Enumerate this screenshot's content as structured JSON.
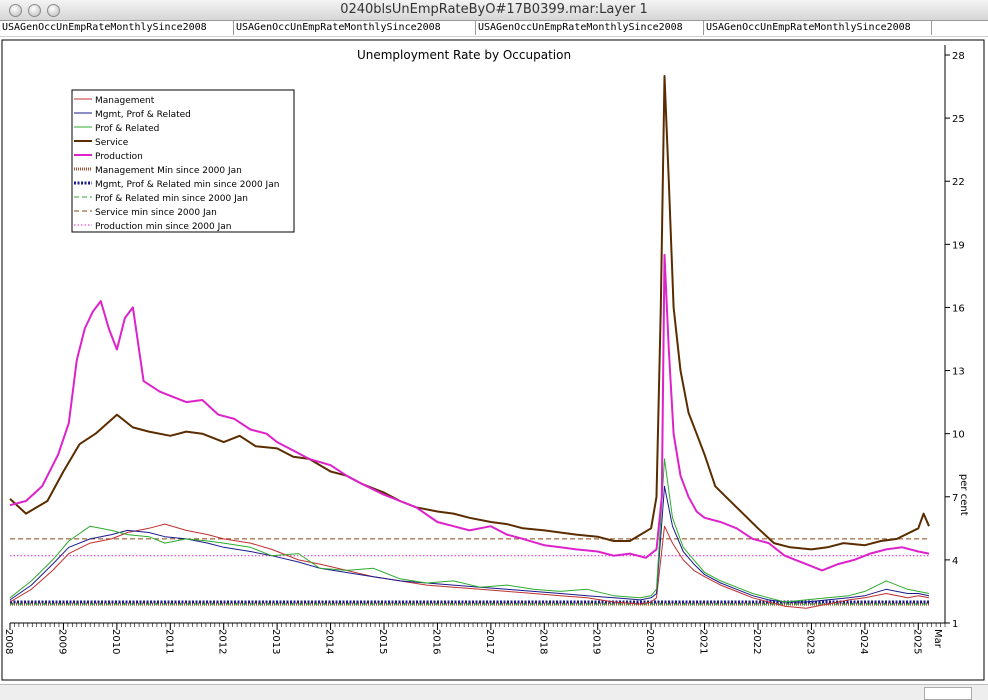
{
  "window": {
    "title": "0240blsUnEmpRateByO#17B0399.mar:Layer 1",
    "tabs": [
      "USAGenOccUnEmpRateMonthlySince2008",
      "USAGenOccUnEmpRateMonthlySince2008",
      "USAGenOccUnEmpRateMonthlySince2008",
      "USAGenOccUnEmpRateMonthlySince2008"
    ]
  },
  "chart_data": {
    "type": "line",
    "title": "Unemployment Rate by Occupation",
    "ylabel": "per cent",
    "ylim": [
      1,
      28
    ],
    "y_ticks": [
      1,
      4,
      7,
      10,
      13,
      16,
      19,
      22,
      25,
      28
    ],
    "xlim": [
      2008.0,
      2025.5
    ],
    "x_ticks": [
      "2008",
      "2009",
      "2010",
      "2011",
      "2012",
      "2013",
      "2014",
      "2015",
      "2016",
      "2017",
      "2018",
      "2019",
      "2020",
      "2021",
      "2022",
      "2023",
      "2024",
      "2025"
    ],
    "x_end_label": "Mar",
    "legend_position": "top-left",
    "series": [
      {
        "name": "Management",
        "color": "#c03030",
        "style": "solid",
        "x": [
          2008.0,
          2008.4,
          2008.8,
          2009.1,
          2009.5,
          2009.9,
          2010.2,
          2010.6,
          2010.9,
          2011.3,
          2011.7,
          2012.0,
          2012.5,
          2012.9,
          2013.4,
          2013.8,
          2014.3,
          2014.8,
          2015.3,
          2015.8,
          2016.3,
          2016.8,
          2017.3,
          2017.8,
          2018.3,
          2018.8,
          2019.3,
          2019.8,
          2020.0,
          2020.1,
          2020.25,
          2020.4,
          2020.6,
          2020.8,
          2021.0,
          2021.3,
          2021.6,
          2021.9,
          2022.2,
          2022.5,
          2022.9,
          2023.3,
          2023.7,
          2024.0,
          2024.4,
          2024.8,
          2025.0,
          2025.2
        ],
        "y": [
          2.0,
          2.6,
          3.5,
          4.3,
          4.8,
          5.0,
          5.3,
          5.5,
          5.7,
          5.4,
          5.2,
          5.0,
          4.8,
          4.5,
          4.0,
          3.8,
          3.5,
          3.2,
          3.0,
          2.8,
          2.7,
          2.6,
          2.5,
          2.4,
          2.3,
          2.2,
          2.0,
          1.9,
          2.0,
          2.2,
          5.6,
          4.8,
          4.0,
          3.5,
          3.2,
          2.8,
          2.5,
          2.2,
          2.0,
          1.8,
          1.7,
          1.9,
          2.1,
          2.2,
          2.4,
          2.2,
          2.3,
          2.2
        ]
      },
      {
        "name": "Mgmt, Prof & Related",
        "color": "#1a1a8c",
        "style": "solid",
        "x": [
          2008.0,
          2008.4,
          2008.8,
          2009.1,
          2009.5,
          2009.9,
          2010.2,
          2010.6,
          2010.9,
          2011.3,
          2011.7,
          2012.0,
          2012.5,
          2012.9,
          2013.4,
          2013.8,
          2014.3,
          2014.8,
          2015.3,
          2015.8,
          2016.3,
          2016.8,
          2017.3,
          2017.8,
          2018.3,
          2018.8,
          2019.3,
          2019.8,
          2020.0,
          2020.1,
          2020.25,
          2020.4,
          2020.6,
          2020.8,
          2021.0,
          2021.3,
          2021.6,
          2021.9,
          2022.2,
          2022.5,
          2022.9,
          2023.3,
          2023.7,
          2024.0,
          2024.4,
          2024.8,
          2025.0,
          2025.2
        ],
        "y": [
          2.1,
          2.8,
          3.8,
          4.6,
          5.0,
          5.2,
          5.4,
          5.3,
          5.1,
          5.0,
          4.8,
          4.6,
          4.4,
          4.2,
          3.9,
          3.6,
          3.4,
          3.2,
          3.0,
          2.9,
          2.8,
          2.7,
          2.6,
          2.5,
          2.4,
          2.3,
          2.2,
          2.1,
          2.2,
          2.4,
          7.5,
          5.6,
          4.4,
          3.8,
          3.3,
          2.9,
          2.6,
          2.3,
          2.1,
          2.0,
          2.0,
          2.1,
          2.2,
          2.3,
          2.6,
          2.4,
          2.4,
          2.3
        ]
      },
      {
        "name": "Prof & Related",
        "color": "#2eab2e",
        "style": "solid",
        "x": [
          2008.0,
          2008.4,
          2008.8,
          2009.1,
          2009.5,
          2009.9,
          2010.2,
          2010.6,
          2010.9,
          2011.3,
          2011.7,
          2012.0,
          2012.5,
          2012.9,
          2013.4,
          2013.8,
          2014.3,
          2014.8,
          2015.3,
          2015.8,
          2016.3,
          2016.8,
          2017.3,
          2017.8,
          2018.3,
          2018.8,
          2019.3,
          2019.8,
          2020.0,
          2020.1,
          2020.25,
          2020.4,
          2020.6,
          2020.8,
          2021.0,
          2021.3,
          2021.6,
          2021.9,
          2022.2,
          2022.5,
          2022.9,
          2023.3,
          2023.7,
          2024.0,
          2024.4,
          2024.8,
          2025.0,
          2025.2
        ],
        "y": [
          2.2,
          3.0,
          4.0,
          4.9,
          5.6,
          5.4,
          5.2,
          5.1,
          4.8,
          5.0,
          4.9,
          4.8,
          4.6,
          4.2,
          4.3,
          3.6,
          3.5,
          3.6,
          3.1,
          2.9,
          3.0,
          2.7,
          2.8,
          2.6,
          2.5,
          2.6,
          2.3,
          2.2,
          2.3,
          2.6,
          8.8,
          6.0,
          4.6,
          4.0,
          3.4,
          3.0,
          2.7,
          2.4,
          2.2,
          2.0,
          2.1,
          2.2,
          2.3,
          2.5,
          3.0,
          2.6,
          2.5,
          2.4
        ]
      },
      {
        "name": "Service",
        "color": "#5a2d00",
        "style": "solid",
        "width": 2,
        "x": [
          2008.0,
          2008.3,
          2008.7,
          2009.0,
          2009.3,
          2009.6,
          2010.0,
          2010.3,
          2010.6,
          2011.0,
          2011.3,
          2011.6,
          2012.0,
          2012.3,
          2012.6,
          2013.0,
          2013.3,
          2013.6,
          2014.0,
          2014.3,
          2014.6,
          2015.0,
          2015.3,
          2015.6,
          2016.0,
          2016.3,
          2016.6,
          2017.0,
          2017.3,
          2017.6,
          2018.0,
          2018.3,
          2018.6,
          2019.0,
          2019.3,
          2019.6,
          2020.0,
          2020.1,
          2020.18,
          2020.25,
          2020.33,
          2020.42,
          2020.55,
          2020.7,
          2020.85,
          2021.0,
          2021.2,
          2021.4,
          2021.6,
          2021.8,
          2022.0,
          2022.3,
          2022.6,
          2023.0,
          2023.3,
          2023.6,
          2024.0,
          2024.3,
          2024.6,
          2025.0,
          2025.1,
          2025.2
        ],
        "y": [
          6.9,
          6.2,
          6.8,
          8.2,
          9.5,
          10.0,
          10.9,
          10.3,
          10.1,
          9.9,
          10.1,
          10.0,
          9.6,
          9.9,
          9.4,
          9.3,
          8.9,
          8.8,
          8.2,
          8.0,
          7.6,
          7.2,
          6.8,
          6.5,
          6.3,
          6.2,
          6.0,
          5.8,
          5.7,
          5.5,
          5.4,
          5.3,
          5.2,
          5.1,
          4.9,
          4.9,
          5.5,
          7.0,
          16.0,
          27.0,
          22.0,
          16.0,
          13.0,
          11.0,
          10.0,
          9.0,
          7.5,
          7.0,
          6.5,
          6.0,
          5.5,
          4.8,
          4.6,
          4.5,
          4.6,
          4.8,
          4.7,
          4.9,
          5.0,
          5.5,
          6.2,
          5.6
        ]
      },
      {
        "name": "Production",
        "color": "#dd22cc",
        "style": "solid",
        "width": 2,
        "x": [
          2008.0,
          2008.3,
          2008.6,
          2008.9,
          2009.1,
          2009.25,
          2009.4,
          2009.55,
          2009.7,
          2009.85,
          2010.0,
          2010.15,
          2010.3,
          2010.5,
          2010.8,
          2011.0,
          2011.3,
          2011.6,
          2011.9,
          2012.2,
          2012.5,
          2012.8,
          2013.0,
          2013.3,
          2013.6,
          2014.0,
          2014.3,
          2014.6,
          2015.0,
          2015.3,
          2015.6,
          2016.0,
          2016.3,
          2016.6,
          2017.0,
          2017.3,
          2017.6,
          2018.0,
          2018.3,
          2018.6,
          2019.0,
          2019.3,
          2019.6,
          2019.9,
          2020.1,
          2020.2,
          2020.25,
          2020.33,
          2020.42,
          2020.55,
          2020.7,
          2020.85,
          2021.0,
          2021.3,
          2021.6,
          2021.9,
          2022.2,
          2022.5,
          2022.9,
          2023.2,
          2023.5,
          2023.8,
          2024.1,
          2024.4,
          2024.7,
          2025.0,
          2025.2
        ],
        "y": [
          6.6,
          6.8,
          7.5,
          9.0,
          10.5,
          13.5,
          15.0,
          15.8,
          16.3,
          15.0,
          14.0,
          15.5,
          16.0,
          12.5,
          12.0,
          11.8,
          11.5,
          11.6,
          10.9,
          10.7,
          10.2,
          10.0,
          9.6,
          9.2,
          8.8,
          8.5,
          8.0,
          7.6,
          7.1,
          6.8,
          6.5,
          5.8,
          5.6,
          5.4,
          5.6,
          5.2,
          5.0,
          4.7,
          4.6,
          4.5,
          4.4,
          4.2,
          4.3,
          4.1,
          4.5,
          7.0,
          18.5,
          14.0,
          10.0,
          8.0,
          7.0,
          6.3,
          6.0,
          5.8,
          5.5,
          5.0,
          4.8,
          4.2,
          3.8,
          3.5,
          3.8,
          4.0,
          4.3,
          4.5,
          4.6,
          4.4,
          4.3
        ]
      },
      {
        "name": "Management  Min  since 2000 Jan",
        "color": "#a05030",
        "style": "hatched",
        "x": [
          2008.0,
          2025.2
        ],
        "y": [
          1.9,
          1.9
        ]
      },
      {
        "name": "Mgmt, Prof & Related  min  since 2000 Jan",
        "color": "#1a1a8c",
        "style": "dotted-bold",
        "x": [
          2008.0,
          2025.2
        ],
        "y": [
          2.0,
          2.0
        ]
      },
      {
        "name": "Prof & Related  min  since 2000 Jan",
        "color": "#2eab2e",
        "style": "dashed",
        "x": [
          2008.0,
          2025.2
        ],
        "y": [
          1.9,
          1.9
        ]
      },
      {
        "name": "Service  min  since 2000 Jan",
        "color": "#8b4513",
        "style": "dashed",
        "x": [
          2008.0,
          2025.2
        ],
        "y": [
          5.0,
          5.0
        ]
      },
      {
        "name": "Production  min  since 2000 Jan",
        "color": "#dd22cc",
        "style": "dotted",
        "x": [
          2008.0,
          2025.2
        ],
        "y": [
          4.2,
          4.2
        ]
      }
    ]
  }
}
